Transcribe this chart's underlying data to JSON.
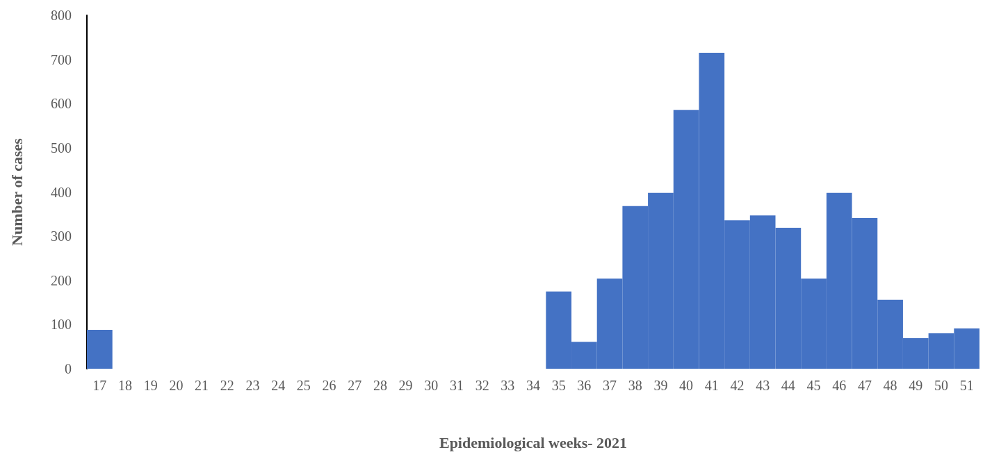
{
  "chart_data": {
    "type": "bar",
    "xlabel": "Epidemiological weeks- 2021",
    "ylabel": "Number of cases",
    "categories": [
      "17",
      "18",
      "19",
      "20",
      "21",
      "22",
      "23",
      "24",
      "25",
      "26",
      "27",
      "28",
      "29",
      "30",
      "31",
      "32",
      "33",
      "34",
      "35",
      "36",
      "37",
      "38",
      "39",
      "40",
      "41",
      "42",
      "43",
      "44",
      "45",
      "46",
      "47",
      "48",
      "49",
      "50",
      "51"
    ],
    "values": [
      88,
      0,
      0,
      0,
      0,
      0,
      0,
      0,
      0,
      0,
      0,
      0,
      0,
      0,
      0,
      0,
      0,
      0,
      175,
      61,
      204,
      368,
      398,
      586,
      715,
      336,
      347,
      319,
      204,
      398,
      341,
      156,
      69,
      80,
      91
    ],
    "color": "#4472c4",
    "ylim": [
      0,
      800
    ],
    "yticks": [
      0,
      100,
      200,
      300,
      400,
      500,
      600,
      700,
      800
    ],
    "grid": false
  }
}
